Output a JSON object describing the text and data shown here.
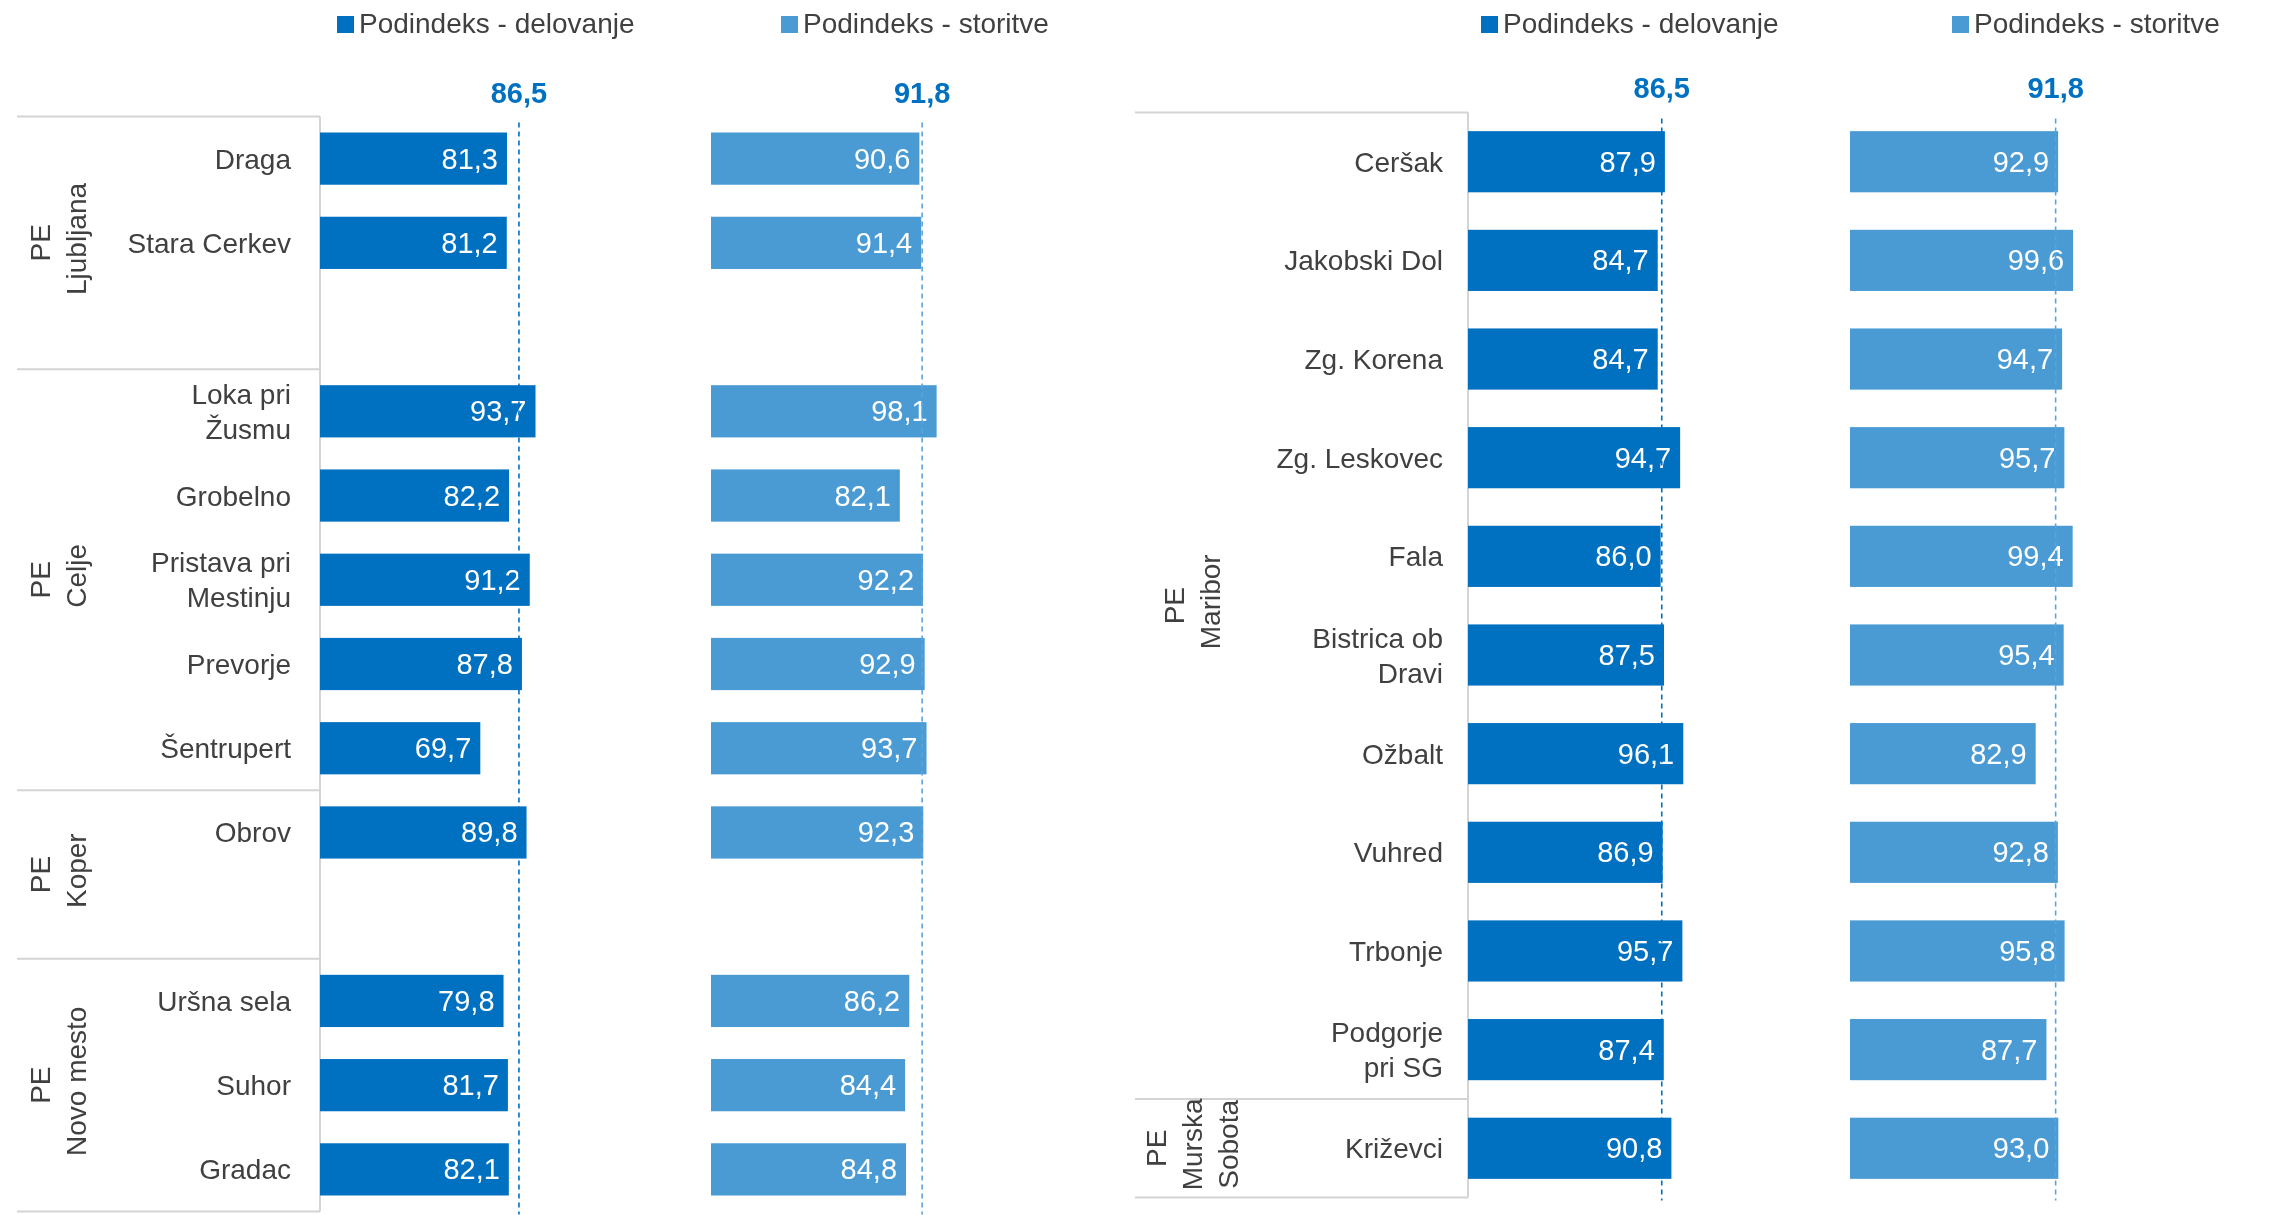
{
  "chart_data": [
    {
      "type": "bar",
      "orientation": "horizontal",
      "categories": [
        "Draga",
        "Stara Cerkev",
        null,
        "Loka pri\nŽusmu",
        "Grobelno",
        "Pristava pri\nMestinju",
        "Prevorje",
        "Šentrupert",
        "Obrov",
        null,
        "Uršna sela",
        "Suhor",
        "Gradac"
      ],
      "series": [
        {
          "name": "Podindeks - delovanje",
          "color": "#0070c0",
          "values": [
            81.3,
            81.2,
            null,
            93.7,
            82.2,
            91.2,
            87.8,
            69.7,
            89.8,
            null,
            79.8,
            81.7,
            82.1
          ],
          "value_labels": [
            "81,3",
            "81,2",
            null,
            "93,7",
            "82,2",
            "91,2",
            "87,8",
            "69,7",
            "89,8",
            null,
            "79,8",
            "81,7",
            "82,1"
          ]
        }
      ],
      "ref_lines": [
        {
          "axis": "x",
          "value": 86.5,
          "label": "86,5",
          "color": "#0070c0",
          "line_style": "dashed"
        }
      ],
      "annotations": [
        "PE\nLjubljana",
        "PE\nCelje",
        "PE\nKoper",
        "PE\nNovo mesto"
      ],
      "legend": "top",
      "tick_labels": "y"
    },
    {
      "type": "bar",
      "orientation": "horizontal",
      "categories": [
        null,
        null,
        null,
        null,
        null,
        null,
        null,
        null,
        null,
        null,
        null,
        null,
        null
      ],
      "series": [
        {
          "name": "Podindeks - storitve",
          "color": "#4a9bd4",
          "values": [
            90.6,
            91.4,
            null,
            98.1,
            82.1,
            92.2,
            92.9,
            93.7,
            92.3,
            null,
            86.2,
            84.4,
            84.8
          ],
          "value_labels": [
            "90,6",
            "91,4",
            null,
            "98,1",
            "82,1",
            "92,2",
            "92,9",
            "93,7",
            "92,3",
            null,
            "86,2",
            "84,4",
            "84,8"
          ]
        }
      ],
      "ref_lines": [
        {
          "axis": "x",
          "value": 91.8,
          "label": "91,8",
          "color": "#5ba3dc",
          "line_style": "dashed"
        }
      ],
      "legend": "top"
    },
    {
      "type": "bar",
      "orientation": "horizontal",
      "categories": [
        "Ceršak",
        "Jakobski Dol",
        "Zg. Korena",
        "Zg. Leskovec",
        "Fala",
        "Bistrica ob\nDravi",
        "Ožbalt",
        "Vuhred",
        "Trbonje",
        "Podgorje\npri SG",
        "Križevci"
      ],
      "series": [
        {
          "name": "Podindeks - delovanje",
          "color": "#0070c0",
          "values": [
            87.9,
            84.7,
            84.7,
            94.7,
            86.0,
            87.5,
            96.1,
            86.9,
            95.7,
            87.4,
            90.8
          ],
          "value_labels": [
            "87,9",
            "84,7",
            "84,7",
            "94,7",
            "86,0",
            "87,5",
            "96,1",
            "86,9",
            "95,7",
            "87,4",
            "90,8"
          ]
        }
      ],
      "ref_lines": [
        {
          "axis": "x",
          "value": 86.5,
          "label": "86,5",
          "color": "#0070c0",
          "line_style": "dashed"
        }
      ],
      "annotations": [
        "PE\nMaribor",
        "PE\nMurska\nSobota"
      ],
      "legend": "top",
      "tick_labels": "y"
    },
    {
      "type": "bar",
      "orientation": "horizontal",
      "categories": [
        null,
        null,
        null,
        null,
        null,
        null,
        null,
        null,
        null,
        null,
        null
      ],
      "series": [
        {
          "name": "Podindeks - storitve",
          "color": "#4a9bd4",
          "values": [
            92.9,
            99.6,
            94.7,
            95.7,
            99.4,
            95.4,
            82.9,
            92.8,
            95.8,
            87.7,
            93.0
          ],
          "value_labels": [
            "92,9",
            "99,6",
            "94,7",
            "95,7",
            "99,4",
            "95,4",
            "82,9",
            "92,8",
            "95,8",
            "87,7",
            "93,0"
          ]
        }
      ],
      "ref_lines": [
        {
          "axis": "x",
          "value": 91.8,
          "label": "91,8",
          "color": "#5ba3dc",
          "line_style": "dashed"
        }
      ],
      "legend": "top"
    }
  ]
}
